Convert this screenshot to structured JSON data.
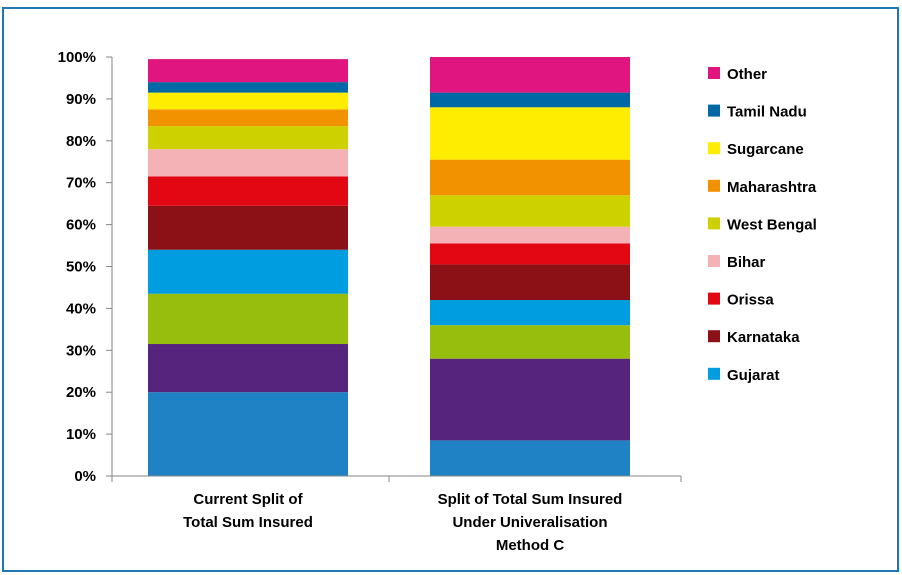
{
  "chart_data": {
    "type": "bar",
    "stacked": true,
    "percent_stacked": true,
    "categories": [
      [
        "Current Split of",
        "Total Sum Insured"
      ],
      [
        "Split of Total Sum Insured",
        "Under Univeralisation",
        "Method C"
      ]
    ],
    "ylim": [
      0,
      100
    ],
    "yticks": [
      "0%",
      "10%",
      "20%",
      "30%",
      "40%",
      "50%",
      "60%",
      "70%",
      "80%",
      "90%",
      "100%"
    ],
    "grid": false,
    "legend_position": "right",
    "series": [
      {
        "color": "#1f82c4",
        "values": [
          20,
          8.5
        ]
      },
      {
        "color": "#57247d",
        "values": [
          11.5,
          19.5
        ]
      },
      {
        "color": "#97be0d",
        "values": [
          12,
          8
        ]
      },
      {
        "name": "Gujarat",
        "color": "#009ee0",
        "values": [
          10.5,
          6
        ]
      },
      {
        "name": "Karnataka",
        "color": "#8c1116",
        "values": [
          10.5,
          8.5
        ]
      },
      {
        "name": "Orissa",
        "color": "#e30613",
        "values": [
          7,
          5
        ]
      },
      {
        "name": "Bihar",
        "color": "#f4b1b6",
        "values": [
          6.5,
          4
        ]
      },
      {
        "name": "West Bengal",
        "color": "#cdd100",
        "values": [
          5.5,
          7.5
        ]
      },
      {
        "name": "Maharashtra",
        "color": "#f39200",
        "values": [
          4,
          8.5
        ]
      },
      {
        "name": "Sugarcane",
        "color": "#ffed00",
        "values": [
          4,
          12.5
        ]
      },
      {
        "name": "Tamil Nadu",
        "color": "#0068a5",
        "values": [
          2.5,
          3.5
        ]
      },
      {
        "name": "Other",
        "color": "#e0157f",
        "values": [
          5.5,
          8.5
        ]
      }
    ]
  }
}
